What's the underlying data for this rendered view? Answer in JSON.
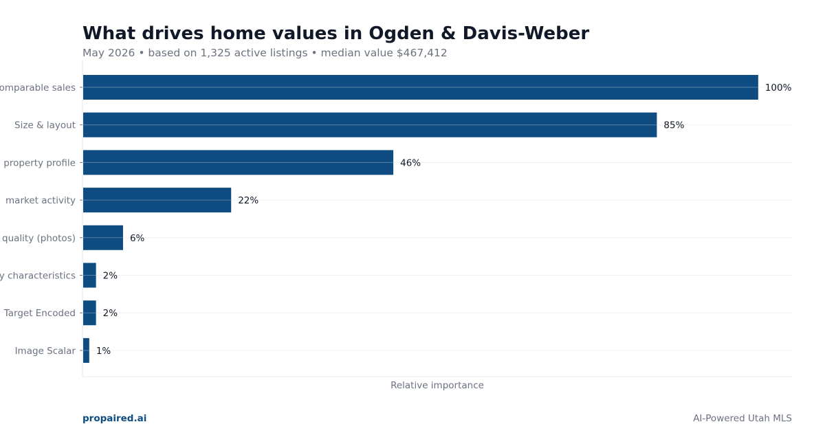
{
  "chart_data": {
    "type": "bar",
    "orientation": "horizontal",
    "title": "What drives home values in Ogden & Davis-Weber",
    "subtitle": "May 2026 • based on 1,325 active listings • median value $467,412",
    "xlabel": "Relative importance",
    "ylabel": "",
    "xlim": [
      0,
      105
    ],
    "categories": [
      "Comparable sales",
      "Size & layout",
      "property profile",
      "market activity",
      "quality (photos)",
      "y characteristics",
      "Target Encoded",
      "Image Scalar"
    ],
    "values": [
      100,
      85,
      46,
      22,
      6,
      2,
      2,
      1
    ],
    "value_labels": [
      "100%",
      "85%",
      "46%",
      "22%",
      "6%",
      "2%",
      "2%",
      "1%"
    ],
    "grid": true,
    "colors": {
      "bar": "#0f4c81",
      "axis_text": "#6b7280",
      "grid": "#f0f0f0",
      "frame": "#e5e7eb"
    }
  },
  "footer": {
    "brand": "propaired.ai",
    "note": "AI-Powered Utah MLS"
  }
}
